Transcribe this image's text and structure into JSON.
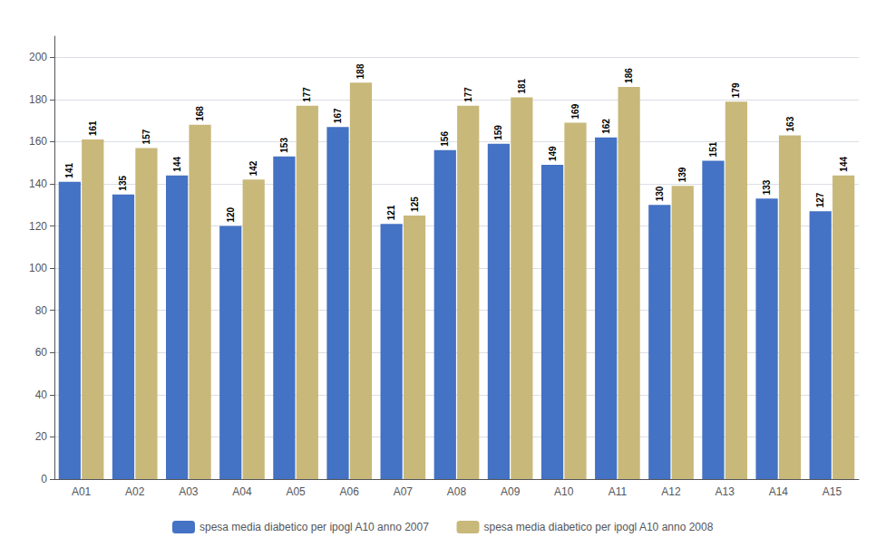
{
  "chart_data": {
    "type": "bar",
    "categories": [
      "A01",
      "A02",
      "A03",
      "A04",
      "A05",
      "A06",
      "A07",
      "A08",
      "A09",
      "A10",
      "A11",
      "A12",
      "A13",
      "A14",
      "A15"
    ],
    "series": [
      {
        "name": "spesa media diabetico per ipogl A10 anno 2007",
        "color": "#4472C4",
        "values": [
          141,
          135,
          144,
          120,
          153,
          167,
          121,
          156,
          159,
          149,
          162,
          130,
          151,
          133,
          127
        ]
      },
      {
        "name": "spesa media diabetico per ipogl A10 anno 2008",
        "color": "#C8B87A",
        "values": [
          161,
          157,
          168,
          142,
          177,
          188,
          125,
          177,
          181,
          169,
          186,
          139,
          179,
          163,
          144
        ]
      }
    ],
    "ylim": [
      0,
      210
    ],
    "yticks": [
      0,
      20,
      40,
      60,
      80,
      100,
      120,
      140,
      160,
      180,
      200
    ],
    "grid": true,
    "legend": "bottom",
    "data_labels": true
  }
}
